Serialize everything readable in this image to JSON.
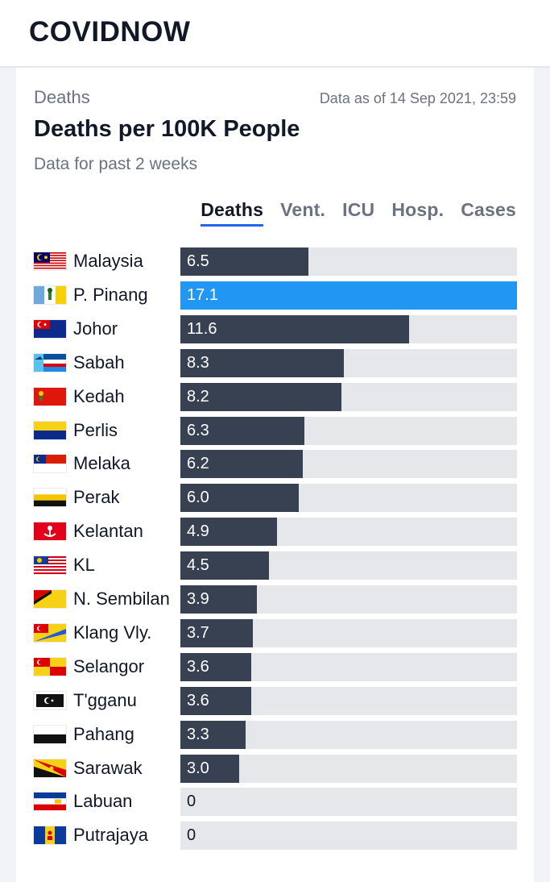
{
  "app": {
    "logo": "COVIDNOW"
  },
  "card": {
    "category": "Deaths",
    "as_of": "Data as of 14 Sep 2021, 23:59",
    "title": "Deaths per 100K People",
    "subtitle": "Data for past 2 weeks"
  },
  "tabs": [
    {
      "label": "Deaths",
      "active": true
    },
    {
      "label": "Vent.",
      "active": false
    },
    {
      "label": "ICU",
      "active": false
    },
    {
      "label": "Hosp.",
      "active": false
    },
    {
      "label": "Cases",
      "active": false
    }
  ],
  "colors": {
    "bar": "#374151",
    "highlight": "#2196f3",
    "track": "#e5e7eb",
    "tab_underline": "#2563eb"
  },
  "chart_data": {
    "type": "bar",
    "orientation": "horizontal",
    "title": "Deaths per 100K People",
    "xlim": [
      0,
      17.1
    ],
    "highlight": "P. Pinang",
    "categories": [
      "Malaysia",
      "P. Pinang",
      "Johor",
      "Sabah",
      "Kedah",
      "Perlis",
      "Melaka",
      "Perak",
      "Kelantan",
      "KL",
      "N. Sembilan",
      "Klang Vly.",
      "Selangor",
      "T'gganu",
      "Pahang",
      "Sarawak",
      "Labuan",
      "Putrajaya"
    ],
    "values": [
      6.5,
      17.1,
      11.6,
      8.3,
      8.2,
      6.3,
      6.2,
      6.0,
      4.9,
      4.5,
      3.9,
      3.7,
      3.6,
      3.6,
      3.3,
      3.0,
      0,
      0
    ],
    "labels": [
      "6.5",
      "17.1",
      "11.6",
      "8.3",
      "8.2",
      "6.3",
      "6.2",
      "6.0",
      "4.9",
      "4.5",
      "3.9",
      "3.7",
      "3.6",
      "3.6",
      "3.3",
      "3.0",
      "0",
      "0"
    ]
  }
}
